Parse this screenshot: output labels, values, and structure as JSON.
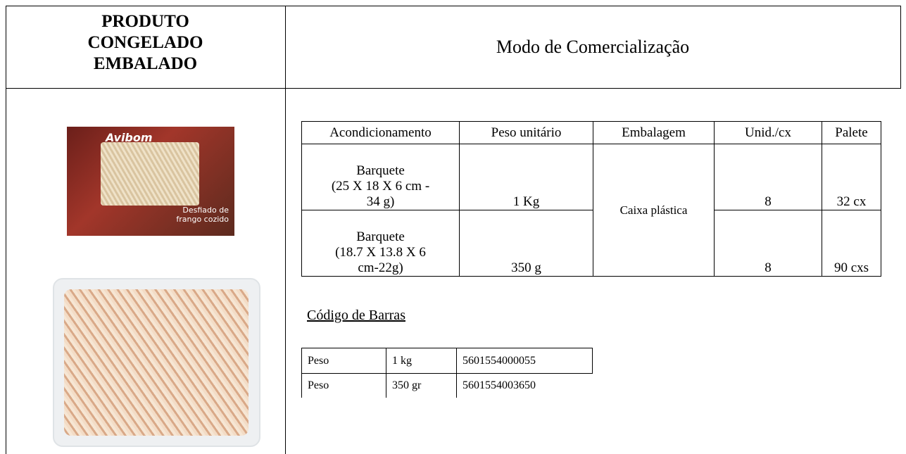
{
  "header": {
    "product_lines": [
      "PRODUTO",
      "CONGELADO",
      "EMBALADO"
    ],
    "title": "Modo de Comercialização"
  },
  "package_image": {
    "brand": "Avibom",
    "product": "Desfiado de frango cozido"
  },
  "table": {
    "columns": [
      "Acondicionamento",
      "Peso unitário",
      "Embalagem",
      "Unid./cx",
      "Palete"
    ],
    "packaging": "Caixa plástica",
    "rows": [
      {
        "acondicionamento": [
          "Barquete",
          "(25 X 18 X 6 cm -",
          "34 g)"
        ],
        "peso": "1 Kg",
        "unid": "8",
        "palete": "32 cx"
      },
      {
        "acondicionamento": [
          "Barquete",
          "(18.7 X 13.8 X 6",
          "cm-22g)"
        ],
        "peso": "350 g",
        "unid": "8",
        "palete": "90 cxs"
      }
    ]
  },
  "barcodes": {
    "title": "Código de Barras",
    "rows": [
      [
        "Peso",
        "1 kg",
        "5601554000055"
      ],
      [
        "Peso",
        "350 gr",
        "5601554003650"
      ]
    ]
  }
}
